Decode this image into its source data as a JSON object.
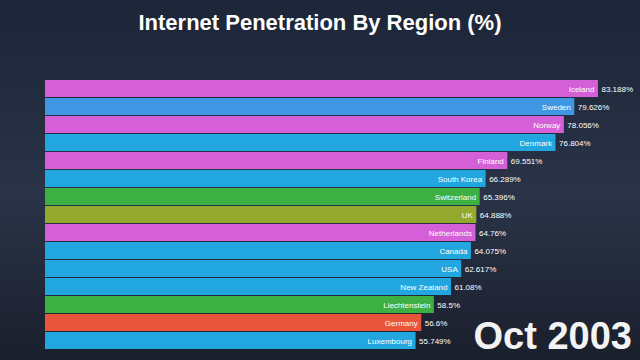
{
  "chart_data": {
    "type": "bar",
    "orientation": "horizontal",
    "title": "Internet Penetration By Region (%)",
    "annotation": "Oct 2003",
    "categories": [
      "Iceland",
      "Sweden",
      "Norway",
      "Denmark",
      "Finland",
      "South Korea",
      "Switzerland",
      "UK",
      "Netherlands",
      "Canada",
      "USA",
      "New Zealand",
      "Liechtenstein",
      "Germany",
      "Luxembourg"
    ],
    "values": [
      83.188,
      79.626,
      78.056,
      76.804,
      69.551,
      66.289,
      65.396,
      64.888,
      64.76,
      64.075,
      62.617,
      61.08,
      58.5,
      56.6,
      55.749
    ],
    "value_labels": [
      "83.188%",
      "79.626%",
      "78.056%",
      "76.804%",
      "69.551%",
      "66.289%",
      "65.396%",
      "64.888%",
      "64.76%",
      "64.075%",
      "62.617%",
      "61.08%",
      "58.5%",
      "56.6%",
      "55.749%"
    ],
    "colors": [
      "#d45fd6",
      "#3f97e4",
      "#d45fd6",
      "#22a6e0",
      "#d45fd6",
      "#22a6e0",
      "#3cb043",
      "#93a82c",
      "#d45fd6",
      "#22a6e0",
      "#22a6e0",
      "#22a6e0",
      "#3cb043",
      "#e8553a",
      "#22a6e0"
    ],
    "xlim": [
      0,
      85
    ],
    "data_labels": true,
    "tick_labels": false,
    "grid": false
  }
}
